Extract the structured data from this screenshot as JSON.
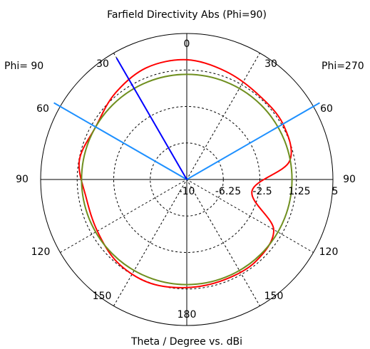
{
  "chart_data": {
    "type": "polar",
    "title": "Farfield Directivity Abs (Phi=90)",
    "xlabel": "Theta / Degree vs. dBi",
    "left_label": "Phi= 90",
    "right_label": "Phi=270",
    "r_range": [
      -10,
      5
    ],
    "r_ticks": [
      "-10",
      "-6.25",
      "-2.5",
      "1.25",
      "5"
    ],
    "r_tick_values": [
      -10,
      -6.25,
      -2.5,
      1.25,
      5
    ],
    "theta_ticks": [
      {
        "label": "0",
        "theta": 0
      },
      {
        "label": "30",
        "theta": 30
      },
      {
        "label": "60",
        "theta": 60
      },
      {
        "label": "90",
        "theta": 90
      },
      {
        "label": "120",
        "theta": 120
      },
      {
        "label": "150",
        "theta": 150
      },
      {
        "label": "180",
        "theta": 180
      },
      {
        "label": "150",
        "theta": -150
      },
      {
        "label": "120",
        "theta": -120
      },
      {
        "label": "90",
        "theta": -90
      },
      {
        "label": "60",
        "theta": -60
      },
      {
        "label": "30",
        "theta": 30,
        "side": "left"
      }
    ],
    "grid": true,
    "series": [
      {
        "role": "directivity",
        "color": "#ff0000",
        "theta": [
          0,
          20,
          40,
          60,
          80,
          100,
          120,
          140,
          160,
          180,
          200,
          220,
          240,
          260,
          280,
          300,
          320,
          340,
          360
        ],
        "values": [
          2.3,
          2.2,
          1.5,
          0.8,
          1.2,
          0.5,
          0.6,
          1.1,
          1.3,
          1.1,
          1.0,
          1.0,
          0.3,
          -3.2,
          0.7,
          1.4,
          1.4,
          1.8,
          2.3
        ]
      },
      {
        "role": "reference",
        "color": "#6f8f1f",
        "theta": [
          0,
          360
        ],
        "values": [
          0.8,
          0.8
        ]
      }
    ],
    "main_lobe_theta": -30,
    "main_lobe_color": "#0000ff",
    "beamwidth_theta": [
      -60,
      60
    ],
    "beamwidth_color": "#1e90ff"
  }
}
